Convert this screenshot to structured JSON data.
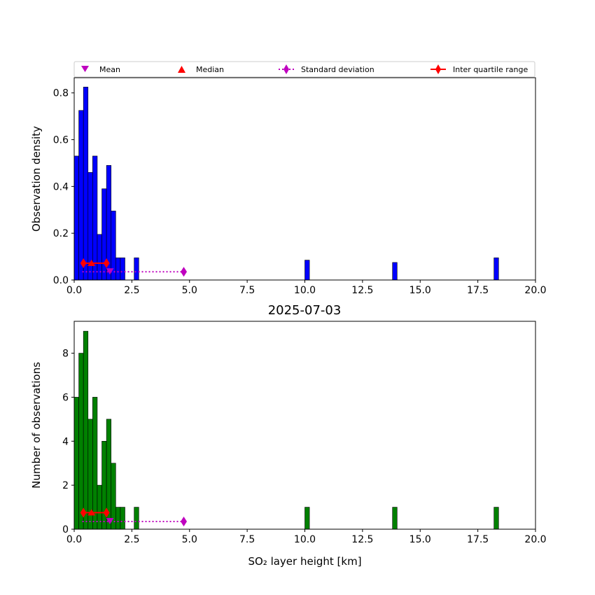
{
  "title": "2025-07-03",
  "legend": [
    {
      "label": "Mean",
      "marker": "triangle-down",
      "color": "#bf00bf"
    },
    {
      "label": "Median",
      "marker": "triangle-up",
      "color": "#ff0000"
    },
    {
      "label": "Standard deviation",
      "marker": "diamond-dotted",
      "color": "#bf00bf"
    },
    {
      "label": "Inter quartile range",
      "marker": "diamond-solid",
      "color": "#ff0000"
    }
  ],
  "chart_data": [
    {
      "type": "bar",
      "panel": "top",
      "ylabel": "Observation density",
      "xlabel": "",
      "xlim": [
        0,
        20
      ],
      "ylim": [
        0,
        0.865
      ],
      "xticks": [
        "0.0",
        "2.5",
        "5.0",
        "7.5",
        "10.0",
        "12.5",
        "15.0",
        "17.5",
        "20.0"
      ],
      "yticks": [
        "0.0",
        "0.2",
        "0.4",
        "0.6",
        "0.8"
      ],
      "bar_color": "#0000ff",
      "bins": [
        {
          "x0": 0.0,
          "x1": 0.2,
          "value": 0.53
        },
        {
          "x0": 0.2,
          "x1": 0.4,
          "value": 0.725
        },
        {
          "x0": 0.4,
          "x1": 0.6,
          "value": 0.825
        },
        {
          "x0": 0.6,
          "x1": 0.8,
          "value": 0.46
        },
        {
          "x0": 0.8,
          "x1": 1.0,
          "value": 0.53
        },
        {
          "x0": 1.0,
          "x1": 1.2,
          "value": 0.195
        },
        {
          "x0": 1.2,
          "x1": 1.4,
          "value": 0.39
        },
        {
          "x0": 1.4,
          "x1": 1.6,
          "value": 0.49
        },
        {
          "x0": 1.6,
          "x1": 1.8,
          "value": 0.295
        },
        {
          "x0": 1.8,
          "x1": 2.0,
          "value": 0.095
        },
        {
          "x0": 2.0,
          "x1": 2.2,
          "value": 0.095
        },
        {
          "x0": 2.6,
          "x1": 2.8,
          "value": 0.095
        },
        {
          "x0": 10.0,
          "x1": 10.2,
          "value": 0.085
        },
        {
          "x0": 13.8,
          "x1": 14.0,
          "value": 0.075
        },
        {
          "x0": 18.2,
          "x1": 18.4,
          "value": 0.095
        }
      ],
      "stats": {
        "y": 0.035,
        "iqr_y": 0.072,
        "mean": 1.55,
        "median": 0.75,
        "std_range": [
          0.35,
          4.75
        ],
        "iqr_range": [
          0.4,
          1.4
        ]
      }
    },
    {
      "type": "bar",
      "panel": "bottom",
      "ylabel": "Number of observations",
      "xlabel": "SO₂ layer height [km]",
      "xlim": [
        0,
        20
      ],
      "ylim": [
        0,
        9.45
      ],
      "xticks": [
        "0.0",
        "2.5",
        "5.0",
        "7.5",
        "10.0",
        "12.5",
        "15.0",
        "17.5",
        "20.0"
      ],
      "yticks": [
        "0",
        "2",
        "4",
        "6",
        "8"
      ],
      "bar_color": "#008000",
      "bins": [
        {
          "x0": 0.0,
          "x1": 0.2,
          "value": 6
        },
        {
          "x0": 0.2,
          "x1": 0.4,
          "value": 8
        },
        {
          "x0": 0.4,
          "x1": 0.6,
          "value": 9
        },
        {
          "x0": 0.6,
          "x1": 0.8,
          "value": 5
        },
        {
          "x0": 0.8,
          "x1": 1.0,
          "value": 6
        },
        {
          "x0": 1.0,
          "x1": 1.2,
          "value": 2
        },
        {
          "x0": 1.2,
          "x1": 1.4,
          "value": 4
        },
        {
          "x0": 1.4,
          "x1": 1.6,
          "value": 5
        },
        {
          "x0": 1.6,
          "x1": 1.8,
          "value": 3
        },
        {
          "x0": 1.8,
          "x1": 2.0,
          "value": 1
        },
        {
          "x0": 2.0,
          "x1": 2.2,
          "value": 1
        },
        {
          "x0": 2.6,
          "x1": 2.8,
          "value": 1
        },
        {
          "x0": 10.0,
          "x1": 10.2,
          "value": 1
        },
        {
          "x0": 13.8,
          "x1": 14.0,
          "value": 1
        },
        {
          "x0": 18.2,
          "x1": 18.4,
          "value": 1
        }
      ],
      "stats": {
        "y": 0.35,
        "iqr_y": 0.75,
        "mean": 1.55,
        "median": 0.75,
        "std_range": [
          0.35,
          4.75
        ],
        "iqr_range": [
          0.4,
          1.4
        ]
      }
    }
  ]
}
